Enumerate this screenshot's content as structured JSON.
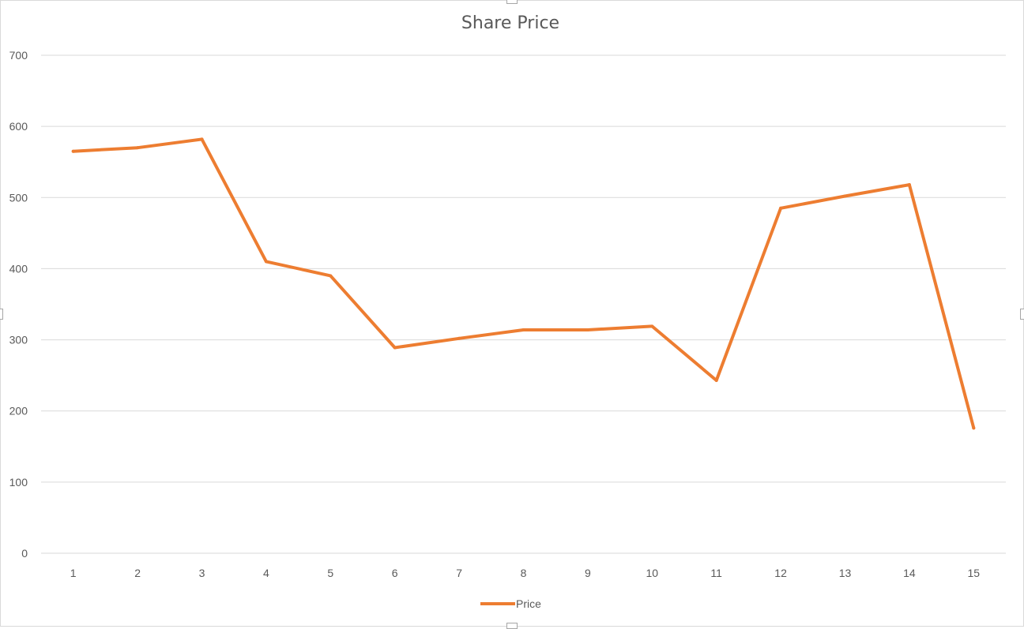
{
  "chart_data": {
    "type": "line",
    "title": "Share Price",
    "xlabel": "",
    "ylabel": "",
    "categories": [
      "1",
      "2",
      "3",
      "4",
      "5",
      "6",
      "7",
      "8",
      "9",
      "10",
      "11",
      "12",
      "13",
      "14",
      "15"
    ],
    "series": [
      {
        "name": "Price",
        "values": [
          565,
          570,
          582,
          410,
          390,
          289,
          302,
          314,
          314,
          319,
          243,
          485,
          502,
          518,
          176
        ]
      }
    ],
    "ylim": [
      0,
      700
    ],
    "yticks": [
      0,
      100,
      200,
      300,
      400,
      500,
      600,
      700
    ],
    "ytick_labels": [
      "0",
      "100",
      "200",
      "300",
      "400",
      "500",
      "600",
      "700"
    ],
    "grid": true,
    "legend_position": "bottom",
    "colors": {
      "series": "#ed7d31",
      "grid": "#d9d9d9",
      "text": "#595959"
    }
  }
}
